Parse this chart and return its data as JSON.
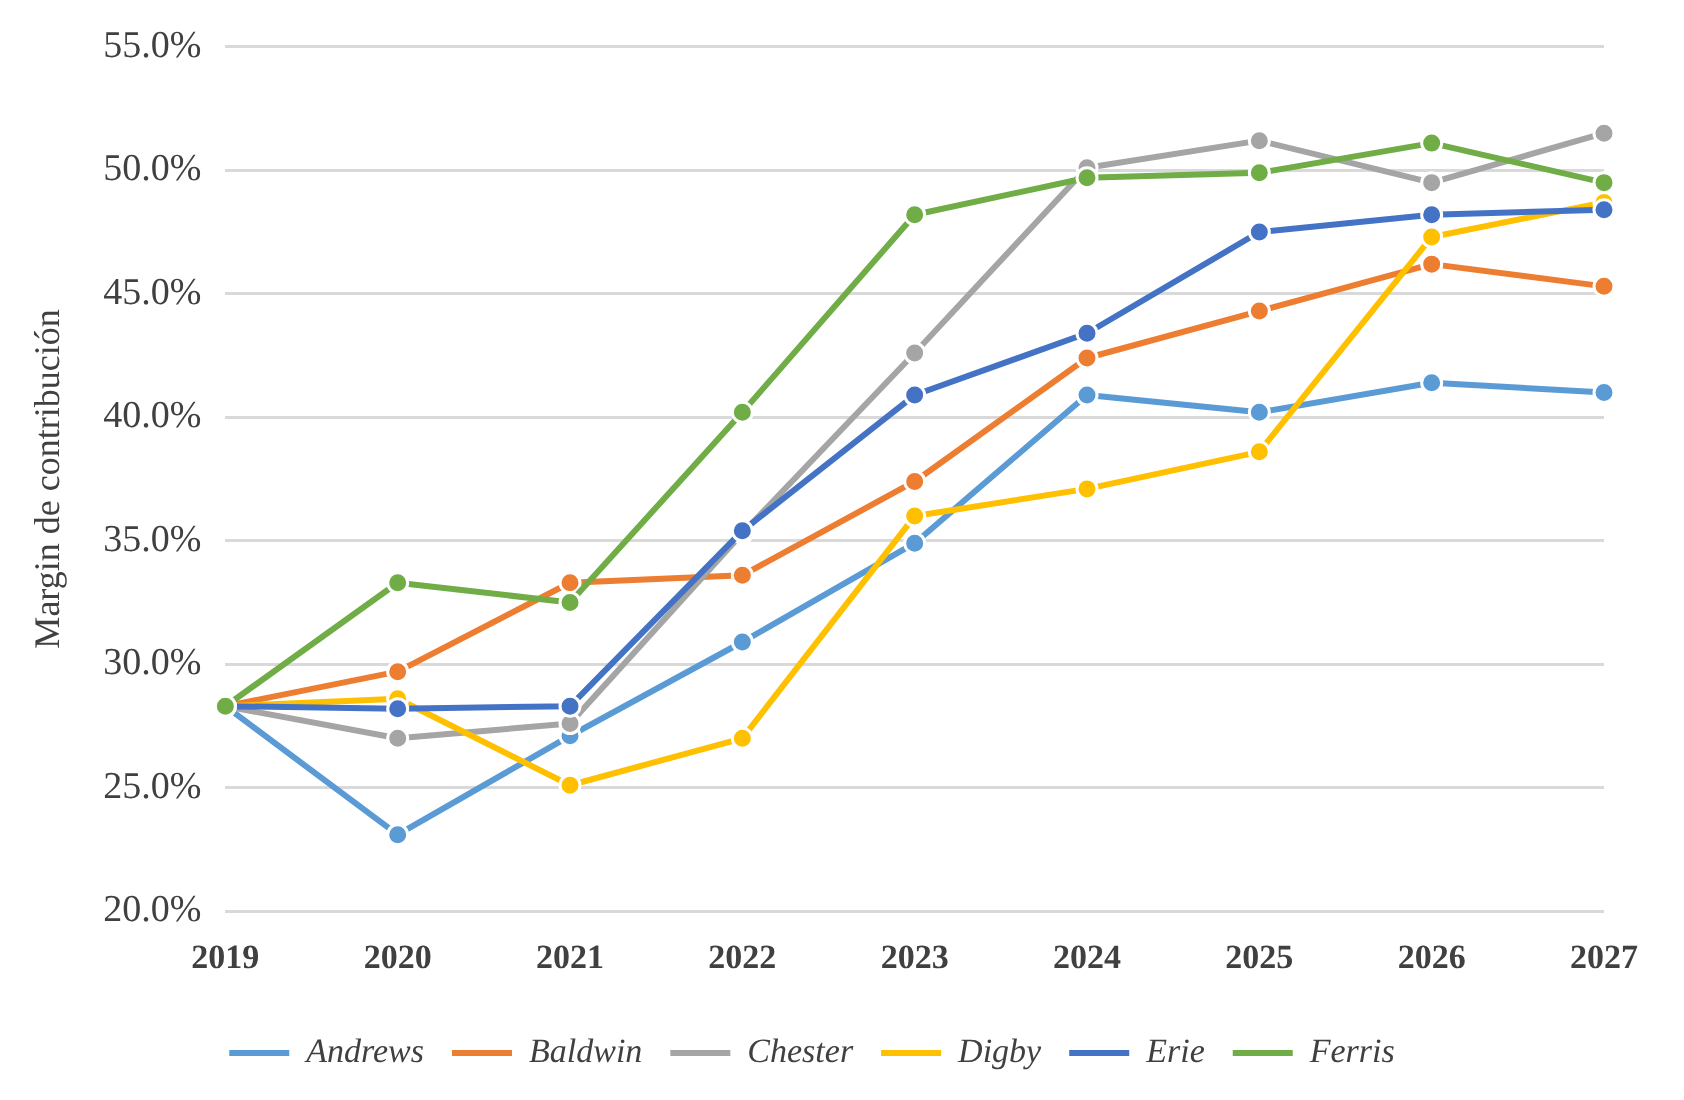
{
  "chart_data": {
    "type": "line",
    "ylabel": "Margin de contribución",
    "categories": [
      "2019",
      "2020",
      "2021",
      "2022",
      "2023",
      "2024",
      "2025",
      "2026",
      "2027"
    ],
    "series": [
      {
        "name": "Andrews",
        "color": "#5b9bd5",
        "values": [
          28.3,
          23.1,
          27.1,
          30.9,
          34.9,
          40.9,
          40.2,
          41.4,
          41.0
        ]
      },
      {
        "name": "Baldwin",
        "color": "#ed7d31",
        "values": [
          28.3,
          29.7,
          33.3,
          33.6,
          37.4,
          42.4,
          44.3,
          46.2,
          45.3
        ]
      },
      {
        "name": "Chester",
        "color": "#a5a5a5",
        "values": [
          28.3,
          27.0,
          27.6,
          35.3,
          42.6,
          50.1,
          51.2,
          49.5,
          51.5
        ]
      },
      {
        "name": "Digby",
        "color": "#ffc000",
        "values": [
          28.3,
          28.6,
          25.1,
          27.0,
          36.0,
          37.1,
          38.6,
          47.3,
          48.7
        ]
      },
      {
        "name": "Erie",
        "color": "#4472c4",
        "values": [
          28.3,
          28.2,
          28.3,
          35.4,
          40.9,
          43.4,
          47.5,
          48.2,
          48.4
        ]
      },
      {
        "name": "Ferris",
        "color": "#70ad47",
        "values": [
          28.3,
          33.3,
          32.5,
          40.2,
          48.2,
          49.7,
          49.9,
          51.1,
          49.5
        ]
      }
    ],
    "ylim": [
      20,
      55
    ],
    "yticks": [
      {
        "value": 20,
        "label": "20.0%"
      },
      {
        "value": 25,
        "label": "25.0%"
      },
      {
        "value": 30,
        "label": "30.0%"
      },
      {
        "value": 35,
        "label": "35.0%"
      },
      {
        "value": 40,
        "label": "40.0%"
      },
      {
        "value": 45,
        "label": "45.0%"
      },
      {
        "value": 50,
        "label": "50.0%"
      },
      {
        "value": 55,
        "label": "55.0%"
      }
    ],
    "grid": "y",
    "legend": "bottom",
    "marker": "circle",
    "line_style": "solid"
  }
}
